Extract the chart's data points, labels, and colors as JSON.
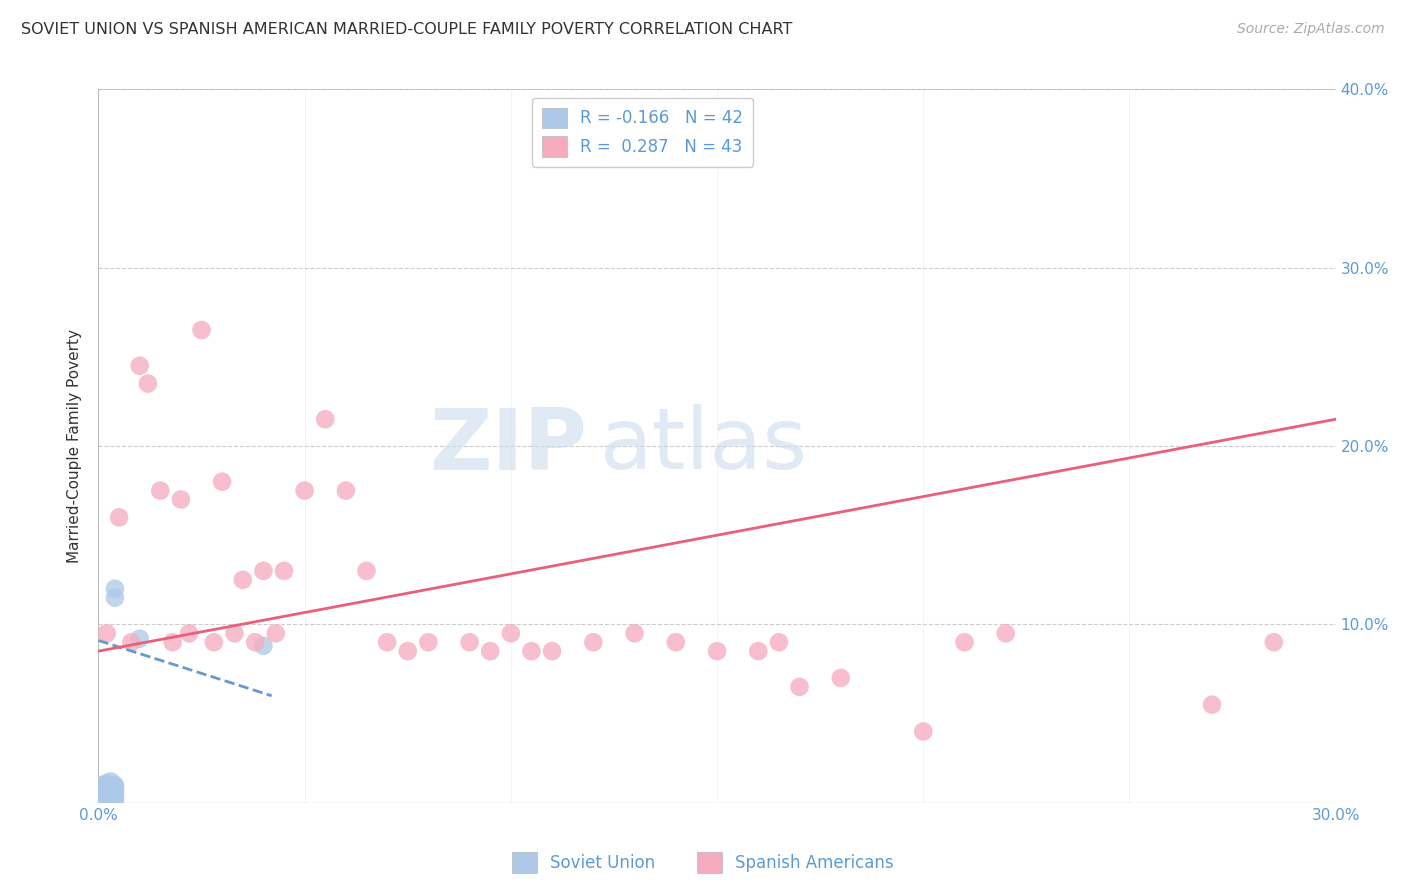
{
  "title": "SOVIET UNION VS SPANISH AMERICAN MARRIED-COUPLE FAMILY POVERTY CORRELATION CHART",
  "source": "Source: ZipAtlas.com",
  "ylabel": "Married-Couple Family Poverty",
  "xlim": [
    0.0,
    0.3
  ],
  "ylim": [
    0.0,
    0.4
  ],
  "xticks": [
    0.0,
    0.05,
    0.1,
    0.15,
    0.2,
    0.25,
    0.3
  ],
  "yticks": [
    0.0,
    0.1,
    0.2,
    0.3,
    0.4
  ],
  "xtick_labels": [
    "0.0%",
    "",
    "",
    "",
    "",
    "",
    "30.0%"
  ],
  "ytick_labels": [
    "",
    "10.0%",
    "20.0%",
    "30.0%",
    "40.0%"
  ],
  "legend_labels": [
    "Soviet Union",
    "Spanish Americans"
  ],
  "soviet_R": -0.166,
  "soviet_N": 42,
  "spanish_R": 0.287,
  "spanish_N": 43,
  "soviet_color": "#adc8e8",
  "spanish_color": "#f5aabe",
  "soviet_line_color": "#6699cc",
  "spanish_line_color": "#e8607a",
  "background_color": "#ffffff",
  "grid_color": "#cccccc",
  "soviet_points_x": [
    0.001,
    0.001,
    0.001,
    0.001,
    0.001,
    0.001,
    0.001,
    0.001,
    0.001,
    0.001,
    0.002,
    0.002,
    0.002,
    0.002,
    0.002,
    0.002,
    0.002,
    0.002,
    0.002,
    0.002,
    0.003,
    0.003,
    0.003,
    0.003,
    0.003,
    0.003,
    0.003,
    0.003,
    0.003,
    0.003,
    0.004,
    0.004,
    0.004,
    0.004,
    0.004,
    0.004,
    0.004,
    0.004,
    0.004,
    0.004,
    0.01,
    0.04
  ],
  "soviet_points_y": [
    0.0,
    0.002,
    0.003,
    0.004,
    0.005,
    0.006,
    0.007,
    0.008,
    0.009,
    0.01,
    0.0,
    0.002,
    0.003,
    0.005,
    0.006,
    0.007,
    0.008,
    0.009,
    0.01,
    0.011,
    0.001,
    0.003,
    0.004,
    0.005,
    0.006,
    0.007,
    0.008,
    0.009,
    0.01,
    0.012,
    0.0,
    0.002,
    0.004,
    0.005,
    0.007,
    0.008,
    0.009,
    0.01,
    0.115,
    0.12,
    0.092,
    0.088
  ],
  "spanish_points_x": [
    0.002,
    0.005,
    0.008,
    0.01,
    0.012,
    0.015,
    0.018,
    0.02,
    0.022,
    0.025,
    0.028,
    0.03,
    0.033,
    0.035,
    0.038,
    0.04,
    0.043,
    0.045,
    0.05,
    0.055,
    0.06,
    0.065,
    0.07,
    0.075,
    0.08,
    0.09,
    0.095,
    0.1,
    0.105,
    0.11,
    0.12,
    0.13,
    0.14,
    0.15,
    0.16,
    0.165,
    0.17,
    0.18,
    0.2,
    0.21,
    0.22,
    0.27,
    0.285
  ],
  "spanish_points_y": [
    0.095,
    0.16,
    0.09,
    0.245,
    0.235,
    0.175,
    0.09,
    0.17,
    0.095,
    0.265,
    0.09,
    0.18,
    0.095,
    0.125,
    0.09,
    0.13,
    0.095,
    0.13,
    0.175,
    0.215,
    0.175,
    0.13,
    0.09,
    0.085,
    0.09,
    0.09,
    0.085,
    0.095,
    0.085,
    0.085,
    0.09,
    0.095,
    0.09,
    0.085,
    0.085,
    0.09,
    0.065,
    0.07,
    0.04,
    0.09,
    0.095,
    0.055,
    0.09
  ],
  "sov_line_x": [
    0.0,
    0.042
  ],
  "sov_line_y": [
    0.091,
    0.06
  ],
  "spa_line_x": [
    0.0,
    0.3
  ],
  "spa_line_y": [
    0.085,
    0.215
  ]
}
